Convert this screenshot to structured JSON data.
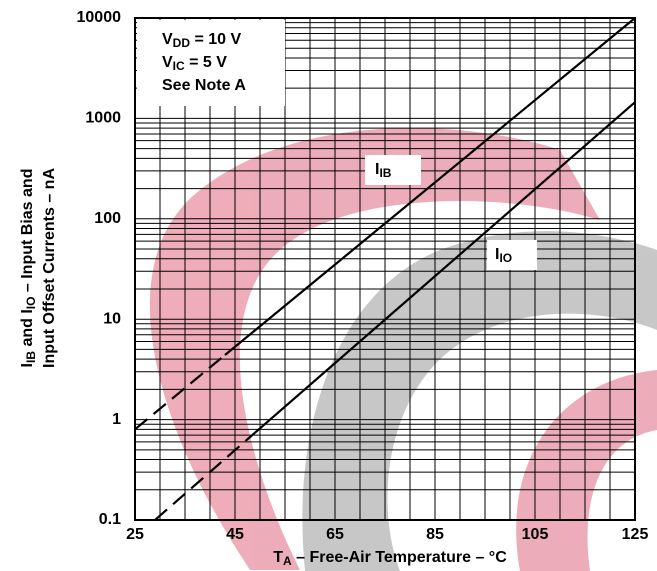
{
  "chart_data": {
    "type": "line",
    "xlabel": [
      "T",
      "A",
      " – Free-Air Temperature – °C"
    ],
    "ylabel": [
      [
        "I",
        "IB",
        " and I",
        "IO",
        " – Input Bias and"
      ],
      [
        "Input Offset Currents – nA"
      ]
    ],
    "annotation": [
      [
        "V",
        "DD",
        " = 10 V"
      ],
      [
        "V",
        "IC",
        " = 5 V"
      ],
      [
        "See Note A"
      ]
    ],
    "log_y": true,
    "grid": true,
    "xlim": [
      25,
      125
    ],
    "xticks": [
      25,
      45,
      65,
      85,
      105,
      125
    ],
    "x_minor_ticks": [
      30,
      35,
      40,
      50,
      55,
      60,
      70,
      75,
      80,
      90,
      95,
      100,
      110,
      115,
      120
    ],
    "ylim": [
      0.1,
      10000
    ],
    "yticks": [
      0.1,
      1,
      10,
      100,
      1000,
      10000
    ],
    "series": [
      {
        "name": [
          "I",
          "IB"
        ],
        "color": "#000000",
        "x": [
          25,
          43,
          125
        ],
        "values": [
          0.8,
          4.4,
          10000
        ],
        "dashed_segments": [
          0
        ]
      },
      {
        "name": [
          "I",
          "IO"
        ],
        "color": "#000000",
        "x": [
          29,
          49,
          125
        ],
        "values": [
          0.1,
          0.74,
          1450
        ],
        "dashed_segments": [
          0
        ]
      }
    ]
  }
}
